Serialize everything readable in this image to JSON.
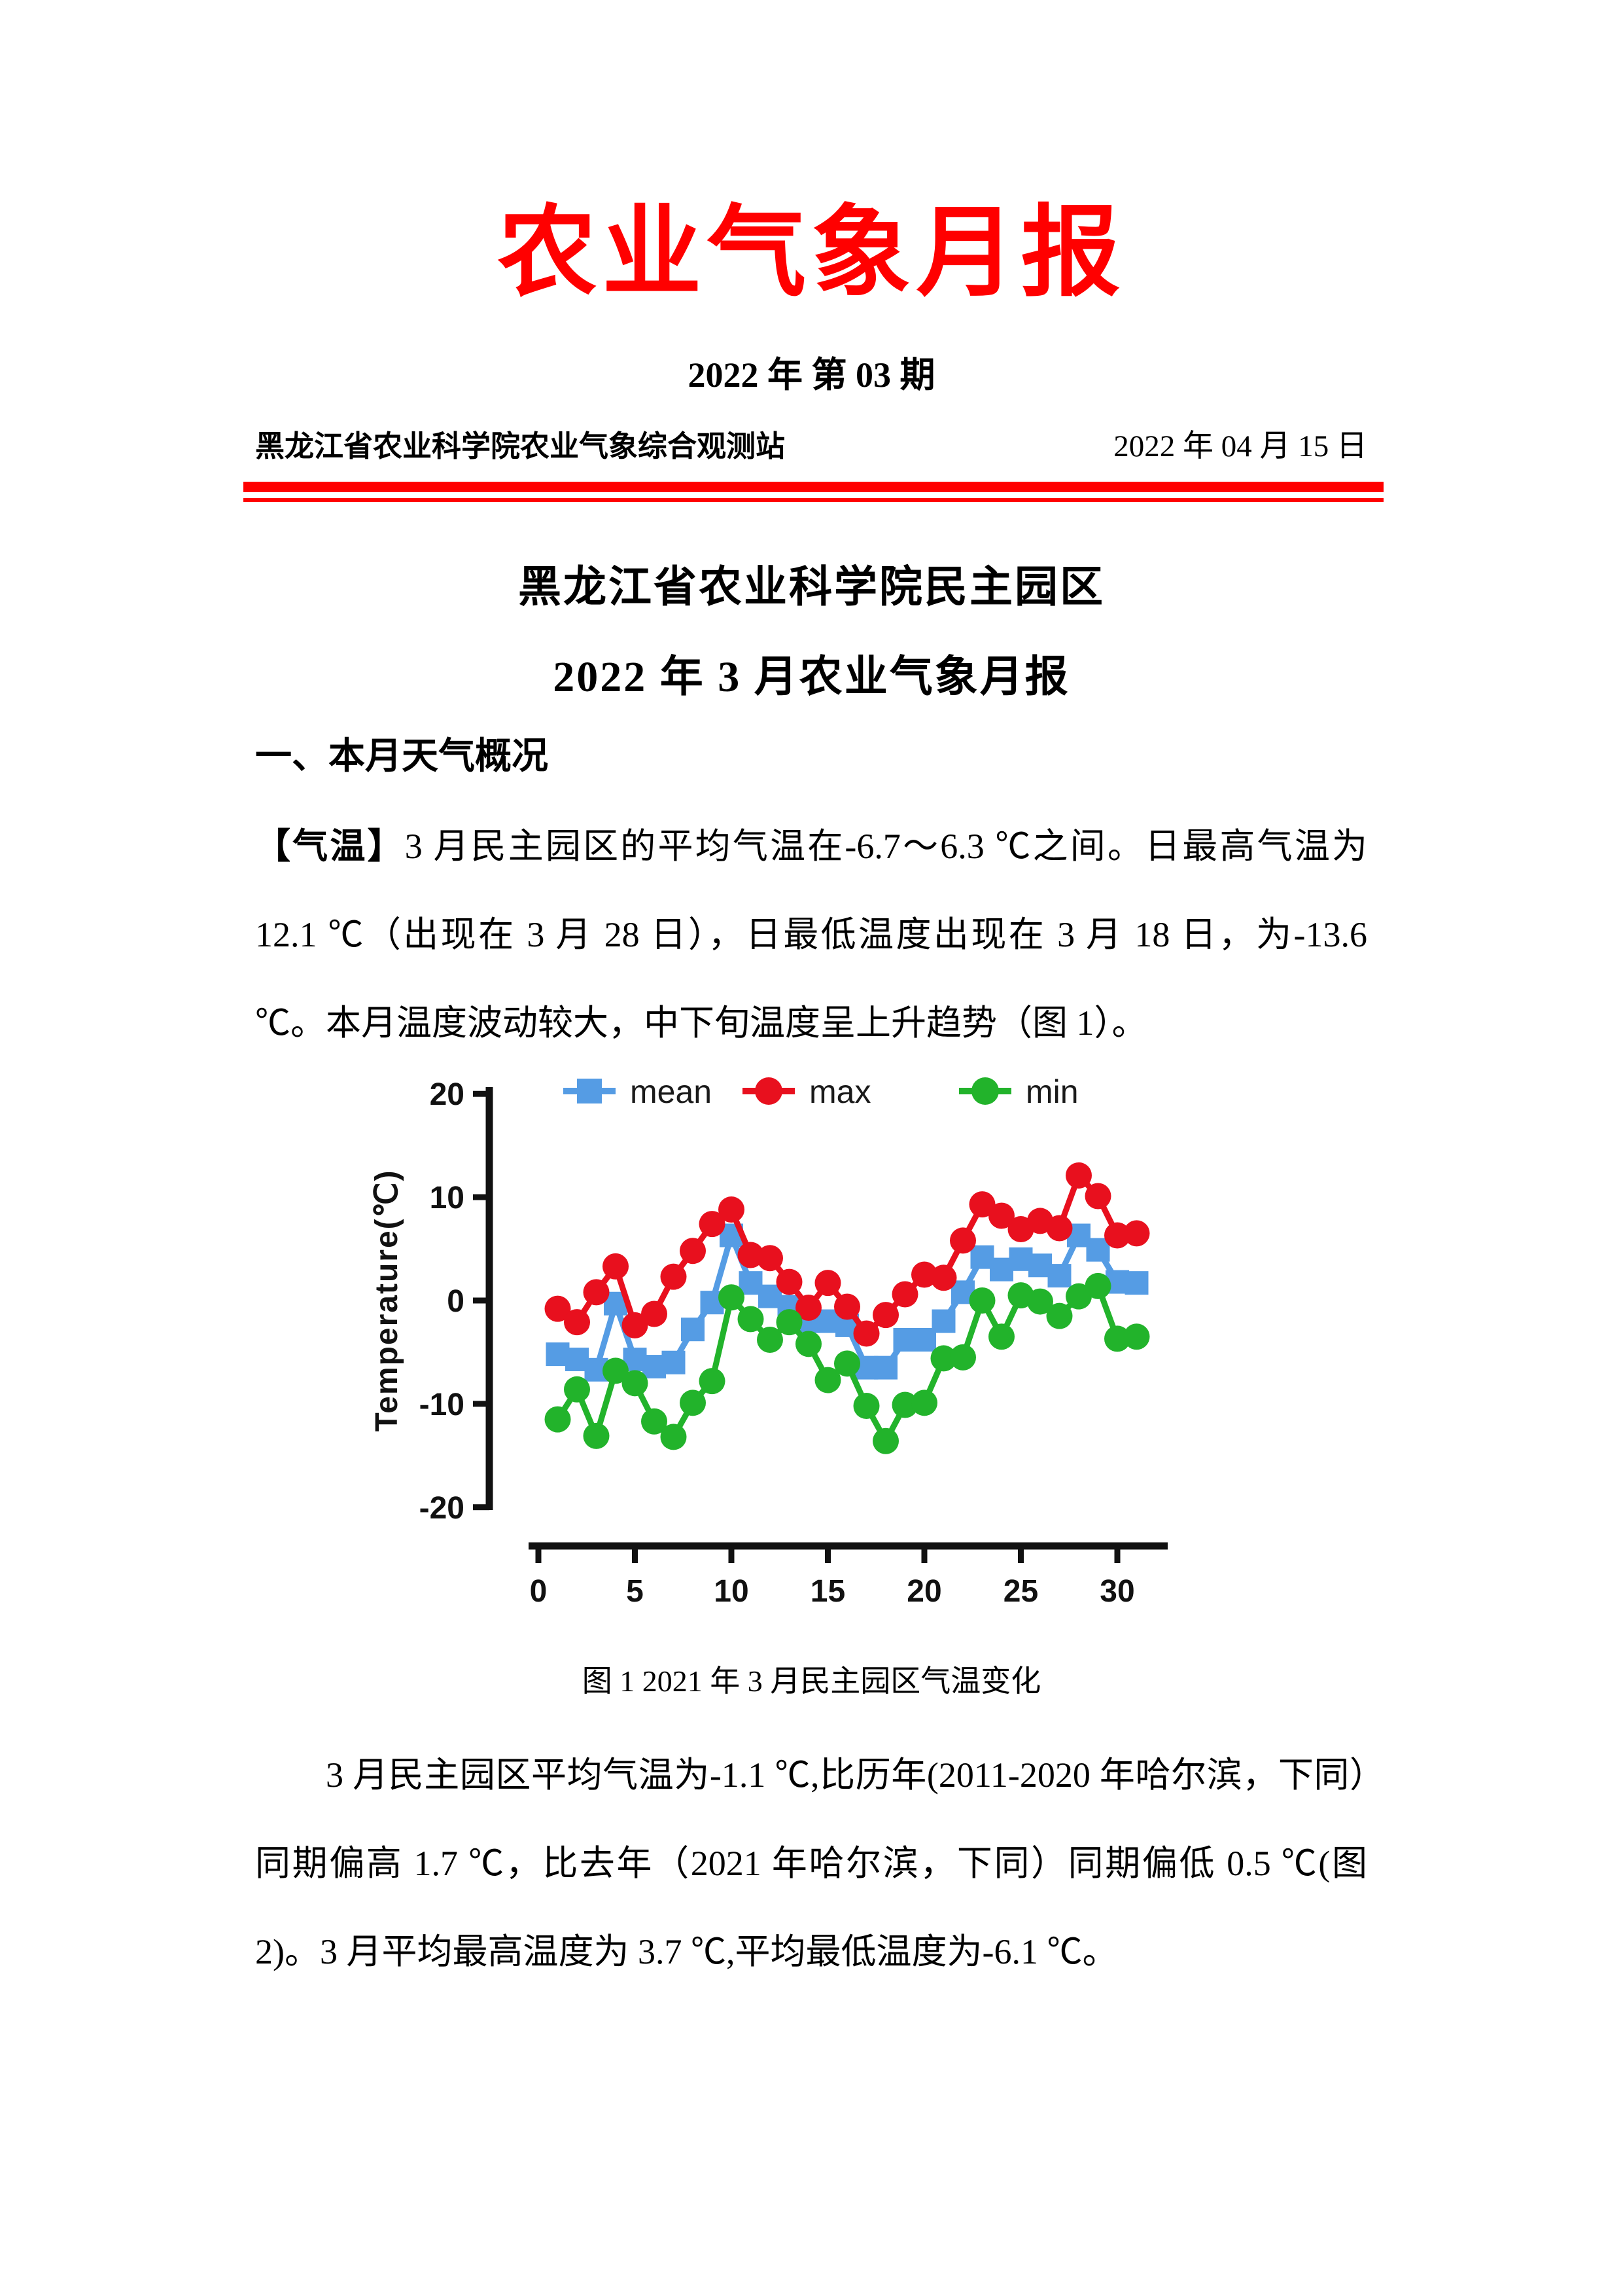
{
  "page": {
    "title": "农业气象月报",
    "issue": "2022 年 第 03 期",
    "station": "黑龙江省农业科学院农业气象综合观测站",
    "date": "2022 年 04 月 15 日"
  },
  "report": {
    "heading1": "黑龙江省农业科学院民主园区",
    "heading2": "2022 年 3 月农业气象月报",
    "section1_title": "一、本月天气概况",
    "para_temperature": {
      "label": "【气温】",
      "text": "3 月民主园区的平均气温在-6.7～6.3 ℃之间。日最高气温为 12.1 ℃（出现在 3 月 28 日），日最低温度出现在 3 月 18 日，为-13.6 ℃。本月温度波动较大，中下旬温度呈上升趋势（图 1）。"
    },
    "figure1_caption": "图 1 2021 年 3 月民主园区气温变化",
    "para_comparison": "3 月民主园区平均气温为-1.1 ℃,比历年(2011-2020 年哈尔滨，下同）同期偏高 1.7 ℃，比去年（2021 年哈尔滨，下同）同期偏低 0.5 ℃(图 2)。3 月平均最高温度为 3.7 ℃,平均最低温度为-6.1 ℃。"
  },
  "chart_data": {
    "type": "line",
    "title": "",
    "xlabel": "",
    "ylabel": "Temperature(℃)",
    "x_ticks": [
      0,
      5,
      10,
      15,
      20,
      25,
      30
    ],
    "y_ticks": [
      20,
      10,
      0,
      -10,
      -20
    ],
    "xlim": [
      0,
      32
    ],
    "ylim": [
      -20,
      20
    ],
    "grid": false,
    "legend_position": "top",
    "x": [
      1,
      2,
      3,
      4,
      5,
      6,
      7,
      8,
      9,
      10,
      11,
      12,
      13,
      14,
      15,
      16,
      17,
      18,
      19,
      20,
      21,
      22,
      23,
      24,
      25,
      26,
      27,
      28,
      29,
      30,
      31
    ],
    "series": [
      {
        "name": "mean",
        "color": "#559ce4",
        "marker": "square",
        "values": [
          -5.2,
          -5.7,
          -6.7,
          -0.3,
          -5.7,
          -6.4,
          -6.0,
          -2.8,
          -0.2,
          6.3,
          1.7,
          0.4,
          -0.6,
          -2.0,
          -2.0,
          -2.4,
          -6.5,
          -6.5,
          -3.8,
          -3.8,
          -2.0,
          0.8,
          4.2,
          3.0,
          4.0,
          3.4,
          2.4,
          6.3,
          4.9,
          1.8,
          1.7
        ]
      },
      {
        "name": "max",
        "color": "#e8101e",
        "marker": "circle",
        "values": [
          -0.8,
          -2.1,
          0.8,
          3.3,
          -2.4,
          -1.3,
          2.3,
          4.8,
          7.4,
          8.8,
          4.4,
          4.1,
          1.8,
          -0.7,
          1.7,
          -0.6,
          -3.2,
          -1.4,
          0.6,
          2.5,
          2.2,
          5.8,
          9.3,
          8.2,
          6.9,
          7.7,
          7.0,
          12.1,
          10.1,
          6.3,
          6.5
        ]
      },
      {
        "name": "min",
        "color": "#22b32b",
        "marker": "circle",
        "values": [
          -11.5,
          -8.6,
          -13.1,
          -6.8,
          -8.0,
          -11.7,
          -13.2,
          -9.9,
          -7.8,
          0.3,
          -1.8,
          -3.8,
          -2.1,
          -4.2,
          -7.7,
          -6.1,
          -10.2,
          -13.6,
          -10.1,
          -9.9,
          -5.6,
          -5.5,
          0.0,
          -3.5,
          0.5,
          -0.1,
          -1.5,
          0.4,
          1.4,
          -3.7,
          -3.5
        ]
      }
    ]
  },
  "colors": {
    "accent_red": "#ff0000",
    "axis": "#111111"
  }
}
